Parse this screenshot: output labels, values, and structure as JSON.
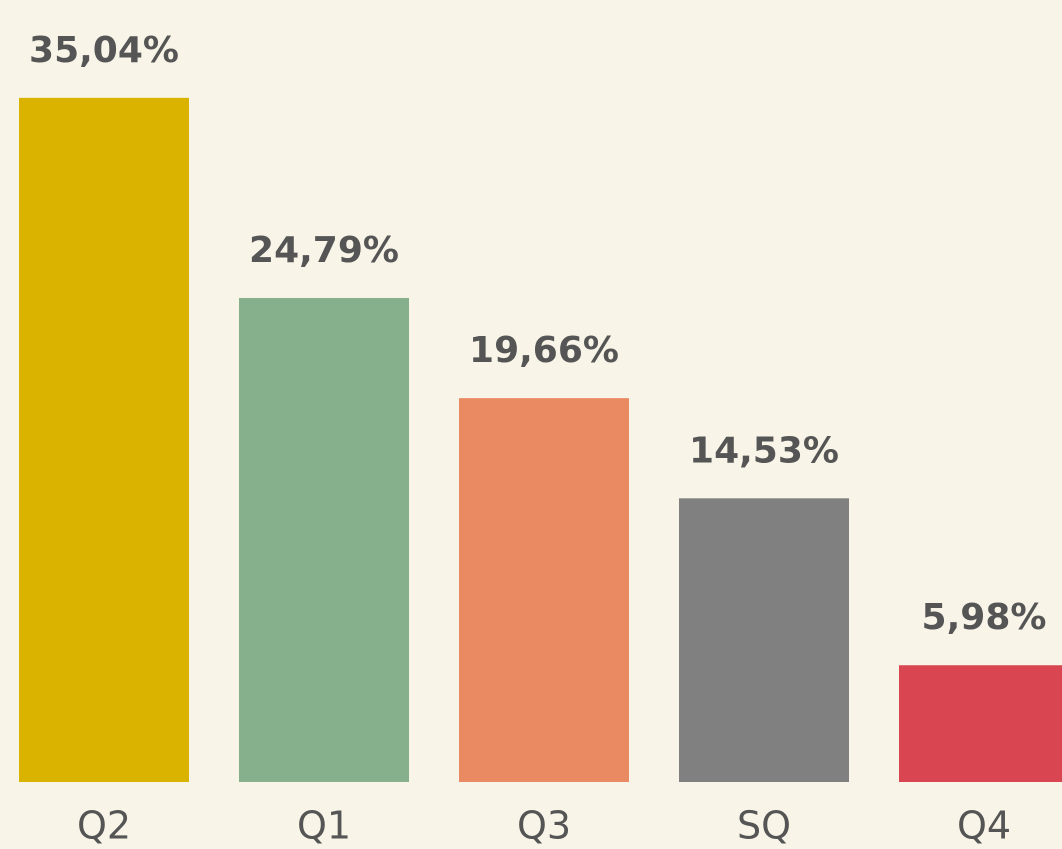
{
  "chart_data": {
    "type": "bar",
    "categories": [
      "Q2",
      "Q1",
      "Q3",
      "SQ",
      "Q4"
    ],
    "values": [
      35.04,
      24.79,
      19.66,
      14.53,
      5.98
    ],
    "value_labels": [
      "35,04%",
      "24,79%",
      "19,66%",
      "14,53%",
      "5,98%"
    ],
    "colors": [
      "#dab300",
      "#86b08c",
      "#ea8a62",
      "#808080",
      "#d94550"
    ],
    "ylim": [
      0,
      40
    ]
  }
}
